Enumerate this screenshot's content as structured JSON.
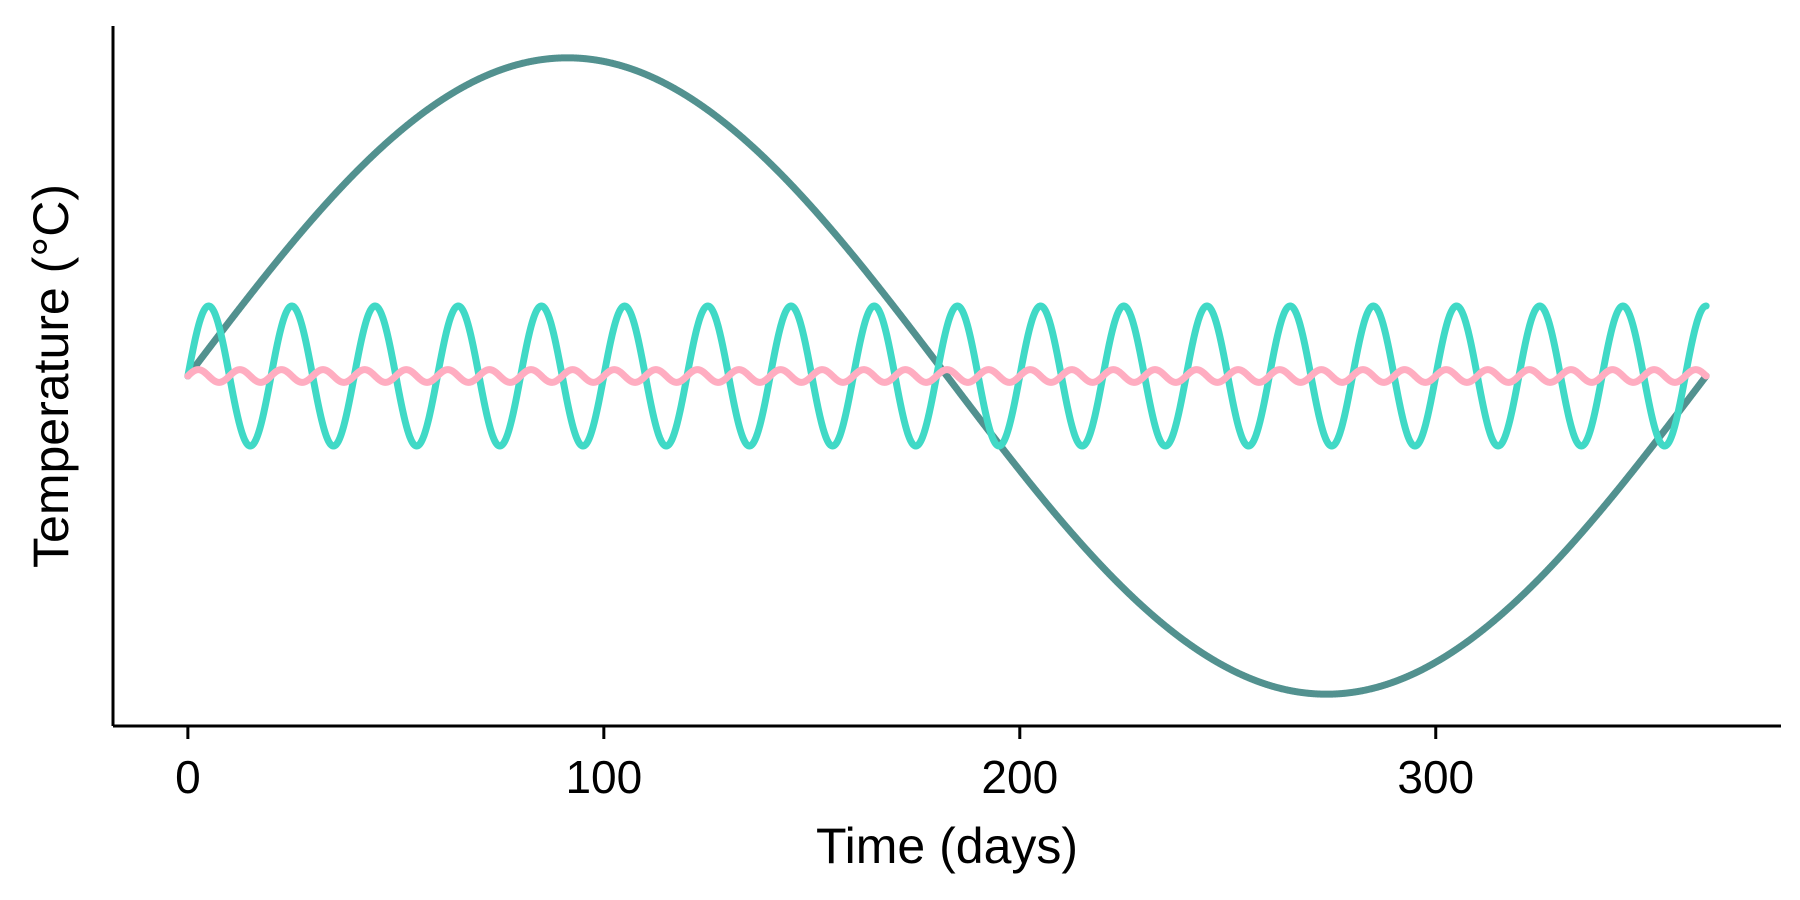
{
  "chart_data": {
    "type": "line",
    "title": "",
    "xlabel": "Time (days)",
    "ylabel": "Temperature (°C)",
    "xlim": [
      -18,
      383
    ],
    "ylim": [
      -1.1,
      1.1
    ],
    "xticks": [
      0,
      100,
      200,
      300
    ],
    "xtick_labels": [
      "0",
      "100",
      "200",
      "300"
    ],
    "yticks": [],
    "grid": false,
    "legend": "none",
    "x_range": [
      0,
      365
    ],
    "series": [
      {
        "description": "annual cycle: sine wave with period 365 days",
        "color": "#52918f",
        "amplitude": 1.0,
        "period_days": 365,
        "offset": 0
      },
      {
        "description": "sub-seasonal cycle: sine wave with period 20 days",
        "color": "#40d9c6",
        "amplitude": 0.22,
        "period_days": 20,
        "offset": 0
      },
      {
        "description": "daily cycle: sine wave with period 10 days",
        "color": "#ffadc1",
        "amplitude": 0.02,
        "period_days": 10,
        "offset": 0
      }
    ]
  }
}
